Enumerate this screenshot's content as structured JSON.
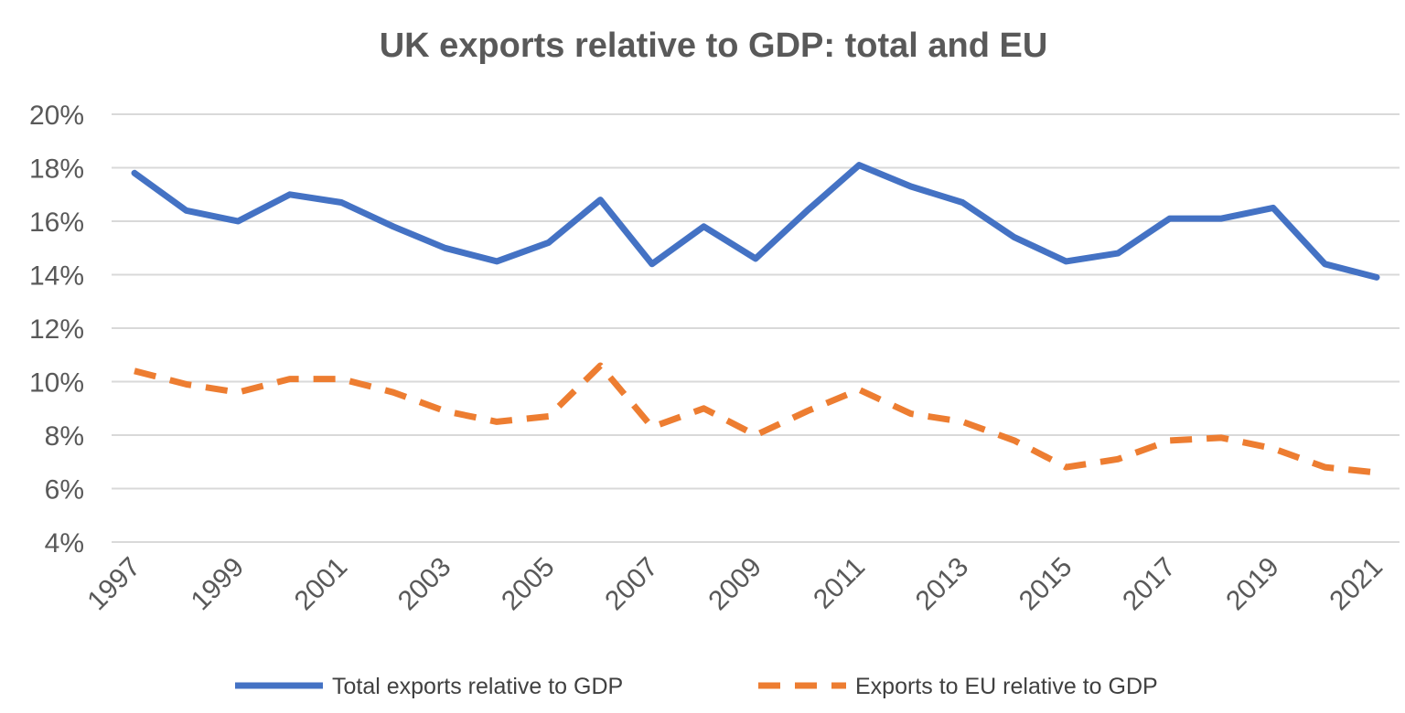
{
  "colors": {
    "total": "#4472c4",
    "eu": "#ed7d31",
    "grid": "#d9d9d9",
    "text": "#595959"
  },
  "chart_data": {
    "type": "line",
    "title": "UK exports relative to GDP: total and EU",
    "xlabel": "",
    "ylabel": "",
    "x": [
      1997,
      1998,
      1999,
      2000,
      2001,
      2002,
      2003,
      2004,
      2005,
      2006,
      2007,
      2008,
      2009,
      2010,
      2011,
      2012,
      2013,
      2014,
      2015,
      2016,
      2017,
      2018,
      2019,
      2020,
      2021
    ],
    "x_tick_labels": [
      "1997",
      "1999",
      "2001",
      "2003",
      "2005",
      "2007",
      "2009",
      "2011",
      "2013",
      "2015",
      "2017",
      "2019",
      "2021"
    ],
    "y_tick_labels": [
      "4%",
      "6%",
      "8%",
      "10%",
      "12%",
      "14%",
      "16%",
      "18%",
      "20%"
    ],
    "ylim": [
      4,
      20
    ],
    "y_unit": "%",
    "grid": true,
    "legend_position": "bottom",
    "series": [
      {
        "name": "Total exports relative to GDP",
        "style": "solid",
        "color": "#4472c4",
        "values": [
          17.8,
          16.4,
          16.0,
          17.0,
          16.7,
          15.8,
          15.0,
          14.5,
          15.2,
          16.8,
          14.4,
          15.8,
          14.6,
          16.4,
          18.1,
          17.3,
          16.7,
          15.4,
          14.5,
          14.8,
          16.1,
          16.1,
          16.5,
          14.4,
          13.9
        ]
      },
      {
        "name": "Exports to EU relative to GDP",
        "style": "dashed",
        "color": "#ed7d31",
        "values": [
          10.4,
          9.9,
          9.6,
          10.1,
          10.1,
          9.6,
          8.9,
          8.5,
          8.7,
          10.6,
          8.3,
          9.0,
          8.0,
          8.9,
          9.7,
          8.8,
          8.5,
          7.8,
          6.8,
          7.1,
          7.8,
          7.9,
          7.5,
          6.8,
          6.6
        ]
      }
    ]
  }
}
